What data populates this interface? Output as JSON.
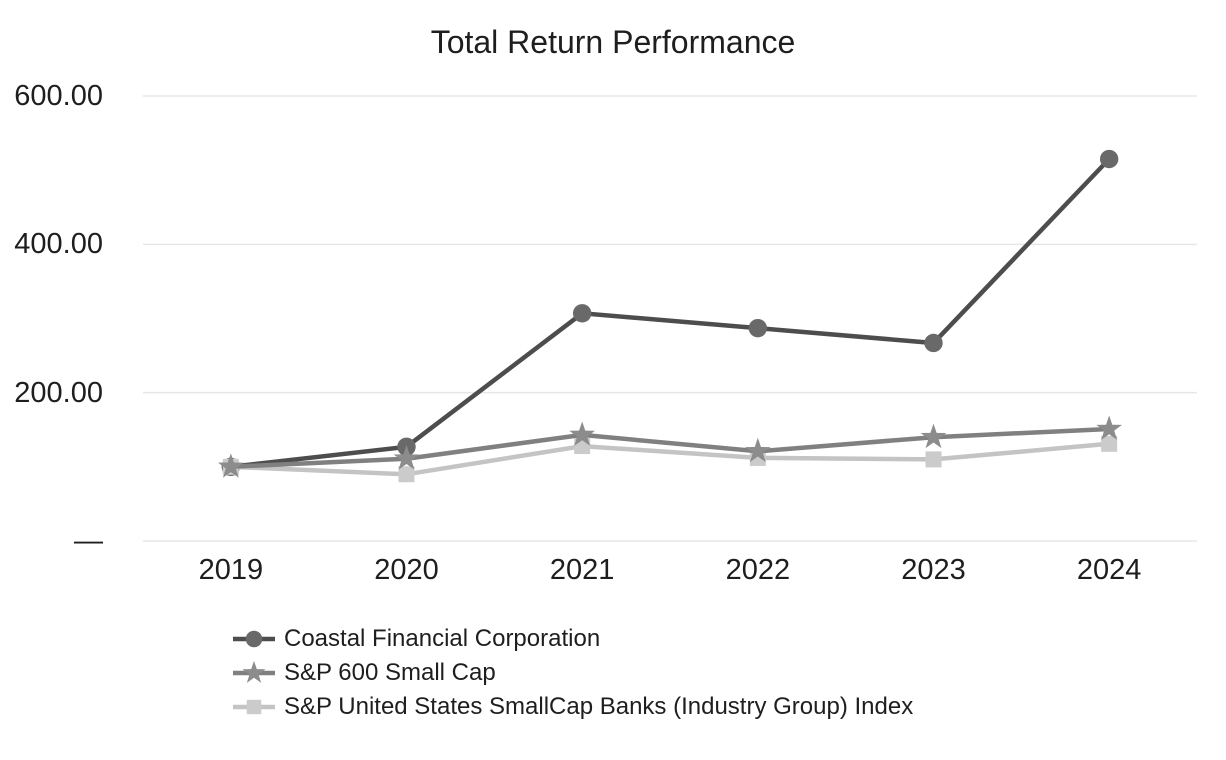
{
  "title": "Total Return Performance",
  "chart_data": {
    "type": "line",
    "title": "Total Return Performance",
    "x": [
      "2019",
      "2020",
      "2021",
      "2022",
      "2023",
      "2024"
    ],
    "series": [
      {
        "name": "Coastal Financial Corporation",
        "marker": "circle",
        "line_color": "#4d4d4d",
        "marker_color": "#696969",
        "values": [
          100,
          127,
          307,
          287,
          267,
          515
        ]
      },
      {
        "name": "S&P 600 Small Cap",
        "marker": "star",
        "line_color": "#808080",
        "marker_color": "#8c8c8c",
        "values": [
          100,
          111,
          143,
          121,
          140,
          151
        ]
      },
      {
        "name": "S&P United States SmallCap Banks (Industry Group) Index",
        "marker": "square",
        "line_color": "#c4c4c4",
        "marker_color": "#cbcbcb",
        "values": [
          100,
          90,
          128,
          112,
          110,
          131
        ]
      }
    ],
    "ylim": [
      0,
      600
    ],
    "yticks": [
      {
        "value": 0,
        "label": "—"
      },
      {
        "value": 200,
        "label": "200.00"
      },
      {
        "value": 400,
        "label": "400.00"
      },
      {
        "value": 600,
        "label": "600.00"
      }
    ],
    "grid": true,
    "gridline_color": "#e7e7e7",
    "legend_position": "bottom-left"
  }
}
